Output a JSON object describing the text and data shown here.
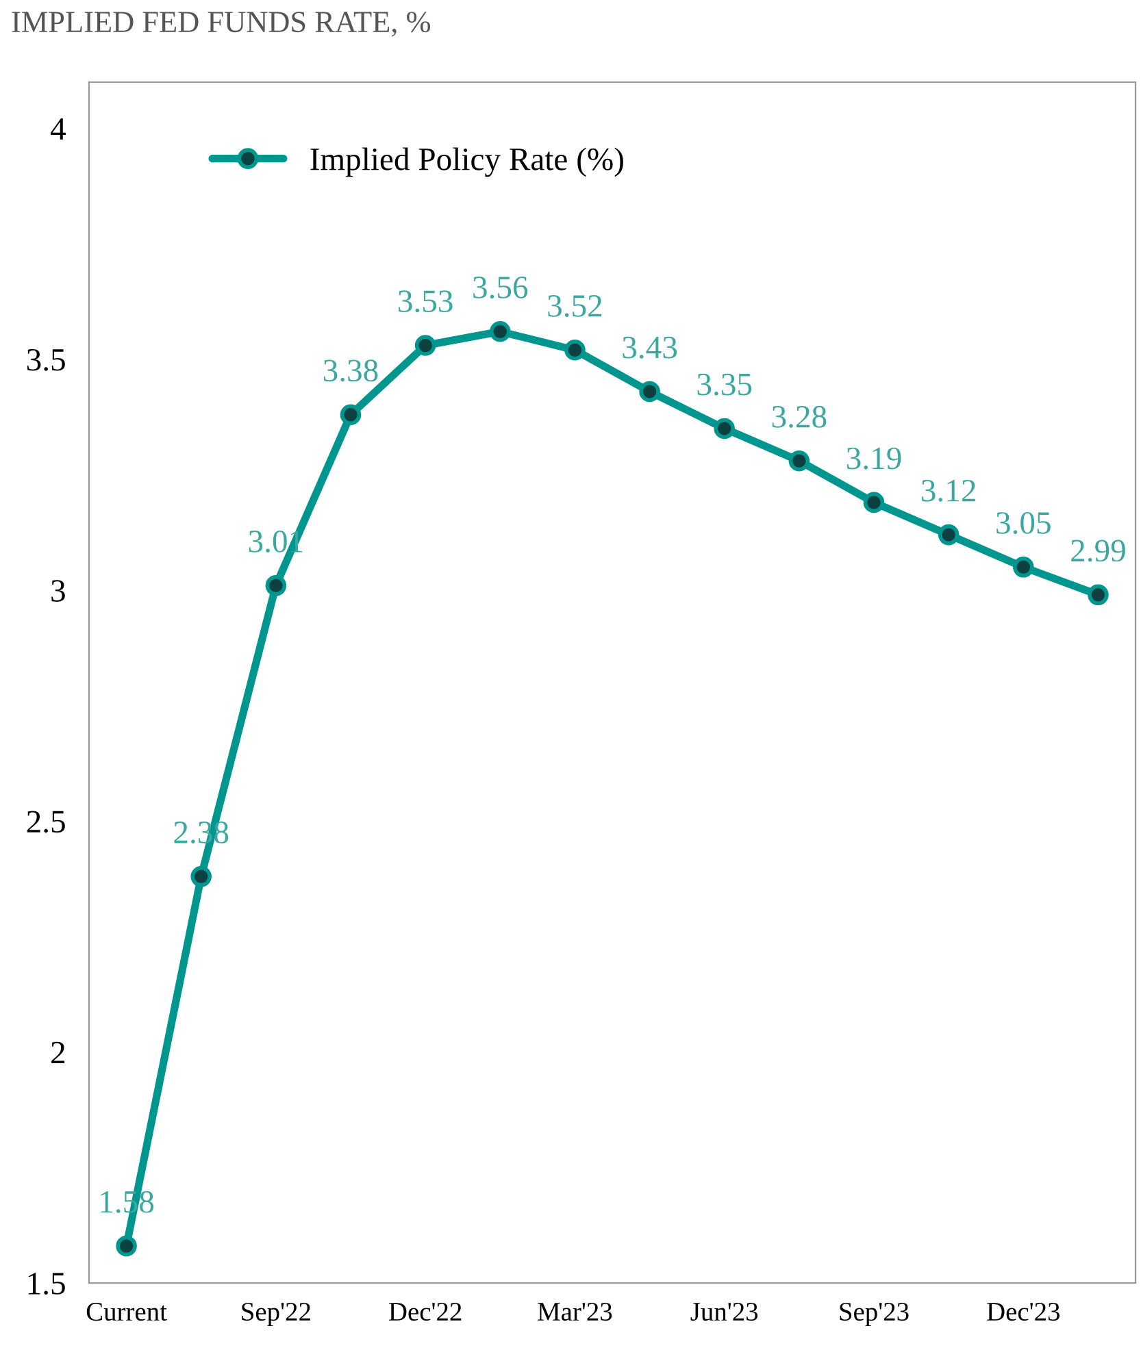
{
  "chart_data": {
    "type": "line",
    "title": "IMPLIED FED FUNDS RATE, %",
    "categories": [
      "Current",
      null,
      "Sep'22",
      null,
      "Dec'22",
      null,
      "Mar'23",
      null,
      "Jun'23",
      null,
      "Sep'23",
      null,
      "Dec'23",
      null
    ],
    "series": [
      {
        "name": "Implied Policy Rate (%)",
        "color": "#009690",
        "values": [
          1.58,
          2.38,
          3.01,
          3.38,
          3.53,
          3.56,
          3.52,
          3.43,
          3.35,
          3.28,
          3.19,
          3.12,
          3.05,
          2.99
        ]
      }
    ],
    "ylim": [
      1.5,
      4.1
    ],
    "yticks": [
      1.5,
      2,
      2.5,
      3,
      3.5,
      4
    ],
    "data_labels": true,
    "marker": "circle",
    "line_style": "solid",
    "grid": false,
    "legend": "top left"
  }
}
